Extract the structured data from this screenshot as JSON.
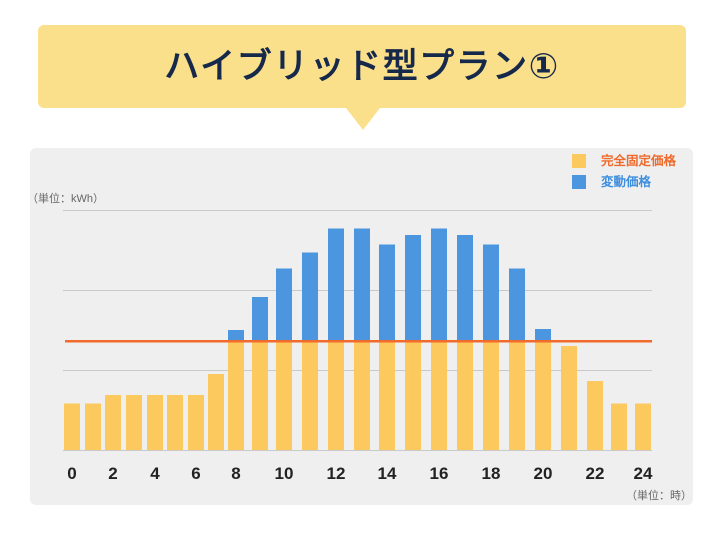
{
  "chart_data": {
    "type": "bar",
    "stacked": true,
    "title": "ハイブリッド型プラン①",
    "xlabel": "（単位：時）",
    "ylabel": "（単位：kWh）",
    "categories": [
      0,
      1,
      2,
      3,
      4,
      5,
      6,
      7,
      8,
      9,
      10,
      11,
      12,
      13,
      14,
      15,
      16,
      17,
      18,
      19,
      20,
      21,
      22,
      23,
      24
    ],
    "x_tick_labels": [
      "0",
      "2",
      "4",
      "6",
      "8",
      "10",
      "12",
      "14",
      "16",
      "18",
      "20",
      "22",
      "24"
    ],
    "ylim": [
      0,
      3
    ],
    "yticks": [
      0,
      1,
      2,
      3
    ],
    "grid": true,
    "legend": "top-right",
    "series": [
      {
        "name": "完全固定価格",
        "color": "#fcc95e",
        "label_color": "#ef6a2b",
        "values": [
          0.58,
          0.58,
          0.69,
          0.69,
          0.69,
          0.69,
          0.69,
          0.95,
          1.36,
          1.36,
          1.36,
          1.36,
          1.36,
          1.36,
          1.36,
          1.36,
          1.36,
          1.36,
          1.36,
          1.36,
          1.36,
          1.3,
          0.86,
          0.58,
          0.58
        ]
      },
      {
        "name": "変動価格",
        "color": "#4b96df",
        "label_color": "#3f8fdf",
        "values": [
          0,
          0,
          0,
          0,
          0,
          0,
          0,
          0,
          0.14,
          0.55,
          0.91,
          1.11,
          1.41,
          1.41,
          1.21,
          1.33,
          1.41,
          1.33,
          1.21,
          0.91,
          0.15,
          0,
          0,
          0,
          0
        ]
      }
    ],
    "reference_line": {
      "value": 1.36,
      "color": "#f06b2c"
    }
  }
}
